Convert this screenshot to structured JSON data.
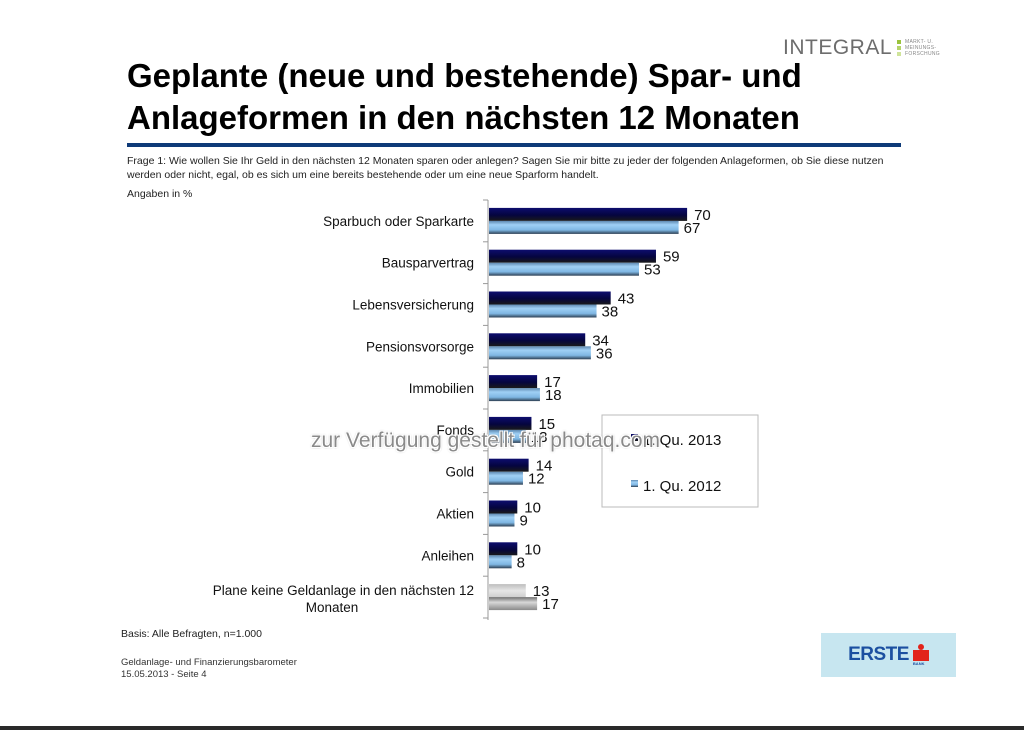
{
  "header": {
    "logo_integral": {
      "word": "INTEGRAL",
      "tagline": [
        "Markt- u.",
        "Meinungs-",
        "forschung"
      ],
      "bar_colors": [
        "#9bc33c",
        "#b5d46a",
        "#cfe49a"
      ]
    },
    "title": "Geplante (neue und bestehende) Spar- und Anlageformen in den nächsten 12 Monaten",
    "rule_color": "#0e3a78"
  },
  "question": "Frage 1: Wie wollen Sie Ihr Geld in den nächsten 12 Monaten sparen oder anlegen? Sagen Sie mir bitte zu jeder der folgenden Anlageformen, ob Sie diese nutzen werden oder nicht, egal, ob es sich um eine bereits bestehende oder um eine neue Sparform handelt.",
  "unit_note": "Angaben in %",
  "chart_data": {
    "type": "bar",
    "orientation": "horizontal",
    "title": "",
    "xlabel": "",
    "ylabel": "",
    "xlim": [
      0,
      100
    ],
    "grid": false,
    "legend_position": "right",
    "categories": [
      "Sparbuch oder Sparkarte",
      "Bausparvertrag",
      "Lebensversicherung",
      "Pensionsvorsorge",
      "Immobilien",
      "Fonds",
      "Gold",
      "Aktien",
      "Anleihen",
      "Plane keine Geldanlage in den nächsten 12 Monaten"
    ],
    "series": [
      {
        "name": "1. Qu. 2013",
        "color": "#0a0a5e",
        "values": [
          70,
          59,
          43,
          34,
          17,
          15,
          14,
          10,
          10,
          13
        ]
      },
      {
        "name": "1. Qu. 2012",
        "color": "#8ec3ec",
        "values": [
          67,
          53,
          38,
          36,
          18,
          13,
          12,
          9,
          8,
          17
        ]
      }
    ],
    "highlight_last_category_color": "#bdbdbd"
  },
  "basis": "Basis: Alle Befragten, n=1.000",
  "footer": {
    "line1": "Geldanlage- und Finanzierungsbarometer",
    "line2": "15.05.2013 - Seite 4"
  },
  "logo_erste": {
    "word": "ERSTE",
    "sub": "BANK"
  },
  "watermark": "zur Verfügung gestellt für photaq.com"
}
